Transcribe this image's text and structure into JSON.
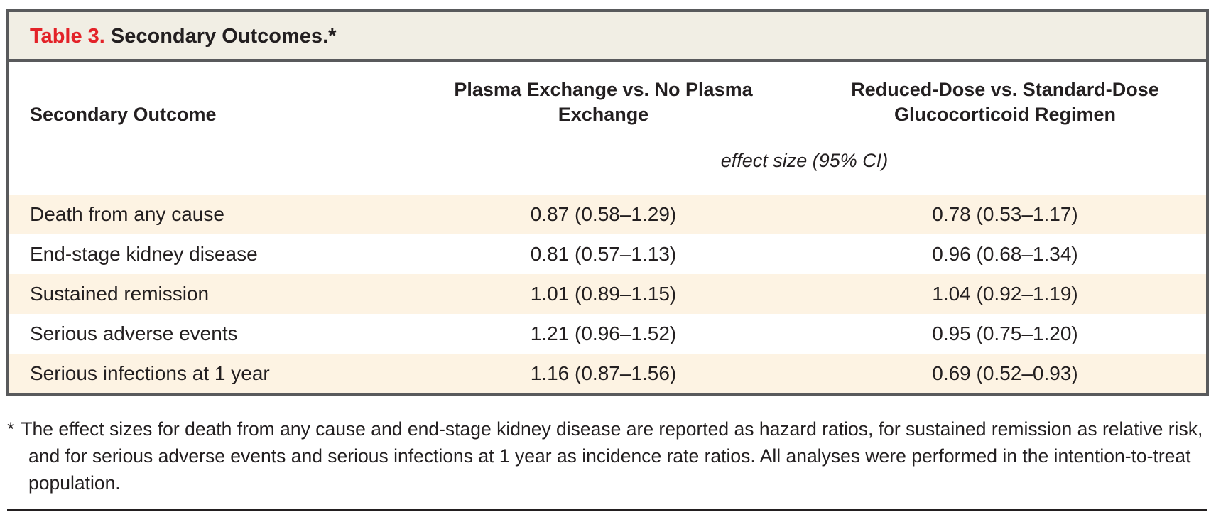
{
  "title": {
    "label": "Table 3.",
    "text": "Secondary Outcomes.*"
  },
  "columns": {
    "outcome": "Secondary Outcome",
    "plasma": "Plasma Exchange vs. No Plasma Exchange",
    "gluco": "Reduced-Dose vs. Standard-Dose Glucocorticoid Regimen"
  },
  "subheader": "effect size (95% CI)",
  "rows": [
    {
      "outcome": "Death from any cause",
      "plasma": "0.87 (0.58–1.29)",
      "gluco": "0.78 (0.53–1.17)"
    },
    {
      "outcome": "End-stage kidney disease",
      "plasma": "0.81 (0.57–1.13)",
      "gluco": "0.96 (0.68–1.34)"
    },
    {
      "outcome": "Sustained remission",
      "plasma": "1.01 (0.89–1.15)",
      "gluco": "1.04 (0.92–1.19)"
    },
    {
      "outcome": "Serious adverse events",
      "plasma": "1.21 (0.96–1.52)",
      "gluco": "0.95 (0.75–1.20)"
    },
    {
      "outcome": "Serious infections at 1 year",
      "plasma": "1.16 (0.87–1.56)",
      "gluco": "0.69 (0.52–0.93)"
    }
  ],
  "footnote": {
    "marker": "*",
    "text": "The effect sizes for death from any cause and end-stage kidney disease are reported as hazard ratios, for sustained remission as relative risk, and for serious adverse events and serious infections at 1 year as incidence rate ratios. All analyses were performed in the intention-to-treat population."
  },
  "colors": {
    "accent_red": "#e32228",
    "title_band_bg": "#f1eee4",
    "row_stripe_bg": "#fdf3e3",
    "border_gray": "#595a5c",
    "text_black": "#231f20"
  },
  "chart_data": {
    "type": "table",
    "title": "Table 3. Secondary Outcomes.",
    "columns": [
      "Secondary Outcome",
      "Plasma Exchange vs. No Plasma Exchange",
      "Reduced-Dose vs. Standard-Dose Glucocorticoid Regimen"
    ],
    "unit_label": "effect size (95% CI)",
    "rows": [
      [
        "Death from any cause",
        "0.87 (0.58–1.29)",
        "0.78 (0.53–1.17)"
      ],
      [
        "End-stage kidney disease",
        "0.81 (0.57–1.13)",
        "0.96 (0.68–1.34)"
      ],
      [
        "Sustained remission",
        "1.01 (0.89–1.15)",
        "1.04 (0.92–1.19)"
      ],
      [
        "Serious adverse events",
        "1.21 (0.96–1.52)",
        "0.95 (0.75–1.20)"
      ],
      [
        "Serious infections at 1 year",
        "1.16 (0.87–1.56)",
        "0.69 (0.52–0.93)"
      ]
    ]
  }
}
